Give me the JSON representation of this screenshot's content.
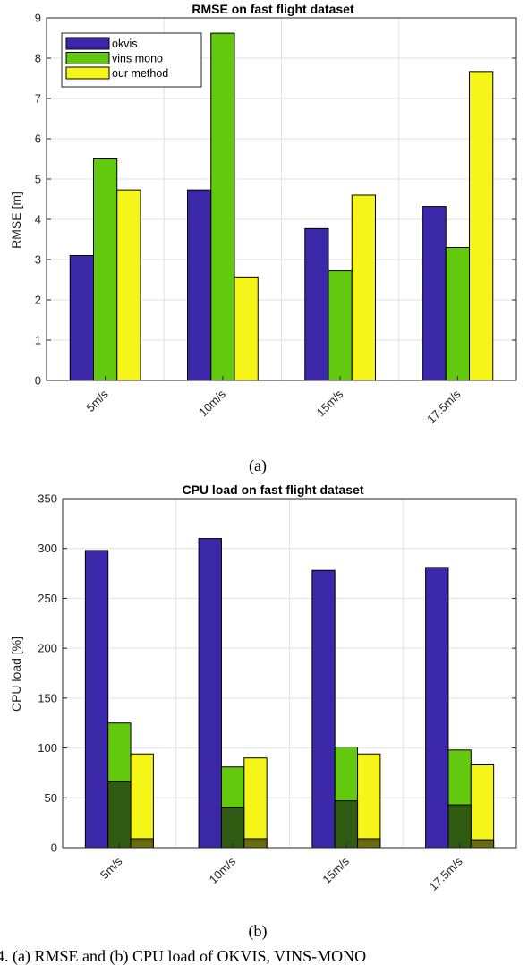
{
  "chart_data": [
    {
      "type": "bar",
      "title": "RMSE on fast flight dataset",
      "ylabel": "RMSE [m]",
      "xlabel": "",
      "ylim": [
        0,
        9
      ],
      "yticks": [
        0,
        1,
        2,
        3,
        4,
        5,
        6,
        7,
        8,
        9
      ],
      "categories": [
        "5m/s",
        "10m/s",
        "15m/s",
        "17.5m/s"
      ],
      "series": [
        {
          "name": "okvis",
          "color": "#3a28a8",
          "values": [
            3.1,
            4.73,
            3.77,
            4.32
          ]
        },
        {
          "name": "vins mono",
          "color": "#62c90e",
          "values": [
            5.5,
            8.62,
            2.72,
            3.3
          ]
        },
        {
          "name": "our method",
          "color": "#f5f51a",
          "values": [
            4.73,
            2.57,
            4.6,
            7.67
          ]
        }
      ],
      "legend": "top-left",
      "grid": true,
      "subcaption": "(a)"
    },
    {
      "type": "bar",
      "title": "CPU load on fast flight dataset",
      "ylabel": "CPU load [%]",
      "xlabel": "",
      "ylim": [
        0,
        350
      ],
      "yticks": [
        0,
        50,
        100,
        150,
        200,
        250,
        300,
        350
      ],
      "categories": [
        "5m/s",
        "10m/s",
        "15m/s",
        "17.5m/s"
      ],
      "series": [
        {
          "name": "okvis",
          "color": "#3a28a8",
          "values": [
            298,
            310,
            278,
            281
          ]
        },
        {
          "name": "vins mono",
          "color": "#62c90e",
          "values": [
            125,
            81,
            101,
            98
          ]
        },
        {
          "name": "our method",
          "color": "#f5f51a",
          "values": [
            94,
            90,
            94,
            83
          ]
        }
      ],
      "inner_series": [
        {
          "color": "#2f5a12",
          "values": [
            66,
            40,
            47,
            43
          ]
        },
        {
          "color": "#6b6b12",
          "values": [
            9,
            9,
            9,
            8
          ]
        }
      ],
      "grid": true,
      "subcaption": "(b)"
    }
  ],
  "caption": "4. (a) RMSE and (b) CPU load of OKVIS, VINS-MONO"
}
